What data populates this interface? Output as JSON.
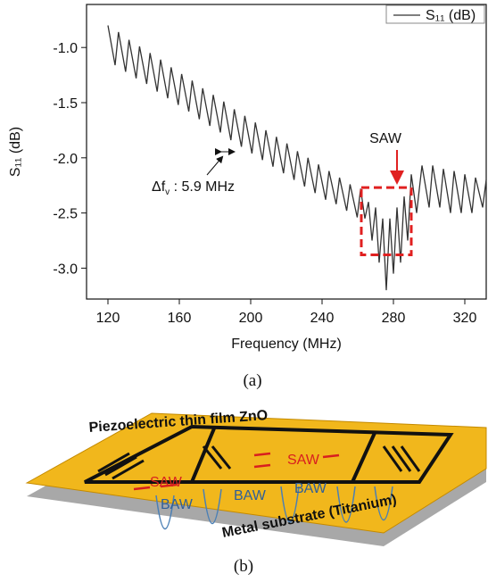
{
  "chart_data": {
    "type": "line",
    "xlabel": "Frequency (MHz)",
    "ylabel": "S₁₁ (dB)",
    "xlim": [
      108,
      332
    ],
    "ylim": [
      -3.28,
      -0.61
    ],
    "xticks": [
      120,
      160,
      200,
      240,
      280,
      320
    ],
    "yticks": [
      {
        "value": -1,
        "label": "-1.0"
      },
      -1.5,
      {
        "value": -2,
        "label": "-2.0"
      },
      -2.5,
      {
        "value": -3,
        "label": "-3.0"
      }
    ],
    "series": [
      {
        "name": "S₁₁ (dB)",
        "color": "#333333",
        "x": [
          120,
          124,
          125.9,
          129.9,
          131.8,
          135.8,
          137.7,
          141.7,
          143.6,
          147.6,
          149.5,
          153.5,
          155.4,
          159.4,
          161.3,
          165.3,
          167.2,
          171.2,
          173.1,
          177.1,
          179,
          183,
          184.9,
          188.9,
          190.8,
          194.8,
          196.7,
          200.7,
          202.6,
          206.6,
          208.5,
          212.5,
          214.4,
          218.4,
          220.3,
          224.3,
          226.2,
          230.2,
          232.1,
          236.1,
          238,
          242,
          243.9,
          247.9,
          249.8,
          253.8,
          255.7,
          259.7,
          261.6,
          264,
          266,
          268,
          270,
          272,
          274,
          276,
          278,
          280,
          282,
          284,
          286,
          288,
          290,
          293,
          296,
          300,
          302,
          306,
          308,
          312,
          314,
          318,
          320,
          324,
          326,
          330,
          332
        ],
        "values": [
          -0.8,
          -1.16,
          -0.86,
          -1.22,
          -0.93,
          -1.28,
          -0.99,
          -1.33,
          -1.05,
          -1.4,
          -1.11,
          -1.46,
          -1.18,
          -1.52,
          -1.24,
          -1.58,
          -1.3,
          -1.65,
          -1.37,
          -1.71,
          -1.43,
          -1.77,
          -1.49,
          -1.84,
          -1.56,
          -1.9,
          -1.62,
          -1.96,
          -1.68,
          -2.02,
          -1.75,
          -2.08,
          -1.81,
          -2.14,
          -1.87,
          -2.2,
          -1.94,
          -2.26,
          -2.0,
          -2.32,
          -2.06,
          -2.38,
          -2.12,
          -2.42,
          -2.18,
          -2.48,
          -2.24,
          -2.54,
          -2.28,
          -2.55,
          -2.4,
          -2.75,
          -2.45,
          -2.95,
          -2.55,
          -3.2,
          -2.55,
          -3.05,
          -2.45,
          -2.95,
          -2.35,
          -2.75,
          -2.15,
          -2.5,
          -2.07,
          -2.45,
          -2.07,
          -2.45,
          -2.1,
          -2.5,
          -2.12,
          -2.5,
          -2.15,
          -2.5,
          -2.18,
          -2.45,
          -2.2
        ]
      }
    ],
    "legend": "upper right",
    "annotations": {
      "delta": "Δf",
      "delta_sub": "v",
      "delta_value": " : 5.9 MHz",
      "saw": "SAW"
    },
    "highlight": {
      "xlim": [
        262,
        290
      ],
      "ylim": [
        -2.88,
        -2.27
      ],
      "color": "#e02020"
    },
    "caption": "(a)"
  },
  "diagram": {
    "film": "Piezoelectric thin film ZnO",
    "substrate": "Metal substrate (Titanium)",
    "saw": [
      "SAW",
      "SAW"
    ],
    "baw": [
      "BAW",
      "BAW",
      "BAW"
    ],
    "caption": "(b)"
  }
}
